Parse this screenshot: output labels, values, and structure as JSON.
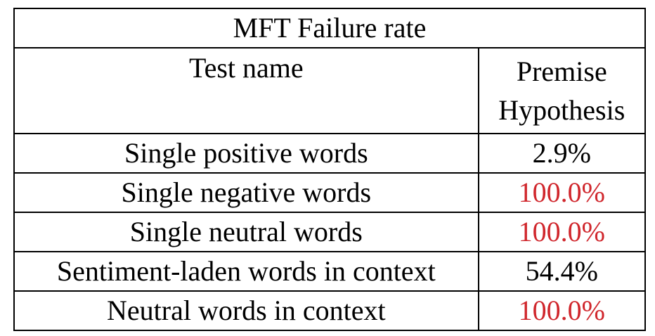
{
  "table": {
    "title": "MFT Failure rate",
    "headers": {
      "test_name": "Test name",
      "value_line1": "Premise",
      "value_line2": "Hypothesis"
    },
    "rows": [
      {
        "name": "Single positive words",
        "value": "2.9%",
        "highlight": false
      },
      {
        "name": "Single negative words",
        "value": "100.0%",
        "highlight": true
      },
      {
        "name": "Single neutral words",
        "value": "100.0%",
        "highlight": true
      },
      {
        "name": "Sentiment-laden words in context",
        "value": "54.4%",
        "highlight": false
      },
      {
        "name": "Neutral words in context",
        "value": "100.0%",
        "highlight": true
      }
    ],
    "highlight_color": "#d0262c"
  }
}
